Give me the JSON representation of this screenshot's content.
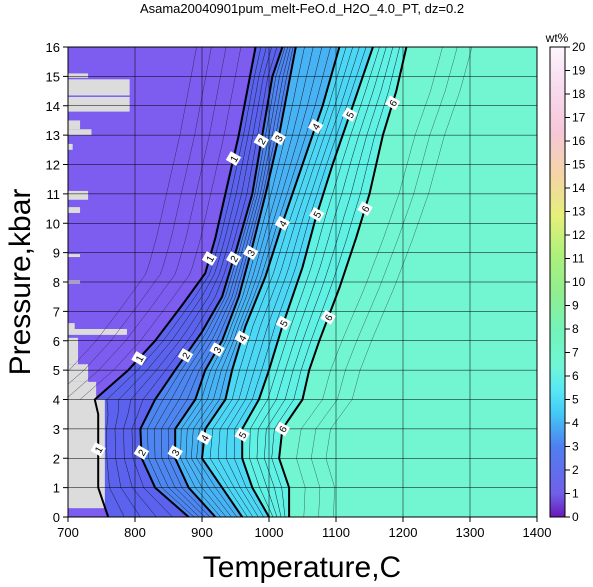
{
  "chart_data": {
    "type": "contour",
    "title": "Asama20040901pum_melt-FeO.d_H2O_4.0_PT, dz=0.2",
    "xlabel": "Temperature,C",
    "ylabel": "Pressure,kbar",
    "xlim": [
      700,
      1400
    ],
    "ylim": [
      0,
      16
    ],
    "xticks": [
      700,
      800,
      900,
      1000,
      1100,
      1200,
      1300,
      1400
    ],
    "yticks": [
      0,
      1,
      2,
      3,
      4,
      5,
      6,
      7,
      8,
      9,
      10,
      11,
      12,
      13,
      14,
      15,
      16
    ],
    "grid": true,
    "colorbar": {
      "title": "wt%",
      "min": 0,
      "max": 20,
      "ticks": [
        0,
        1,
        2,
        3,
        4,
        5,
        6,
        7,
        8,
        9,
        10,
        11,
        12,
        13,
        14,
        15,
        16,
        17,
        18,
        19,
        20
      ]
    },
    "contour_levels_labeled": [
      1,
      2,
      3,
      4,
      5,
      6
    ],
    "contours": [
      {
        "level": 1,
        "points": [
          [
            760,
            0
          ],
          [
            745,
            1
          ],
          [
            745,
            2.5
          ],
          [
            745,
            3.5
          ],
          [
            740,
            4
          ],
          [
            790,
            5
          ],
          [
            830,
            6
          ],
          [
            870,
            7.2
          ],
          [
            905,
            8.3
          ],
          [
            920,
            9.5
          ],
          [
            935,
            11
          ],
          [
            955,
            13
          ],
          [
            980,
            16
          ]
        ]
      },
      {
        "level": 2,
        "points": [
          [
            880,
            0
          ],
          [
            830,
            1
          ],
          [
            810,
            2
          ],
          [
            808,
            3
          ],
          [
            830,
            4
          ],
          [
            860,
            5
          ],
          [
            900,
            6.3
          ],
          [
            930,
            7.5
          ],
          [
            950,
            9
          ],
          [
            975,
            11
          ],
          [
            990,
            13
          ],
          [
            1005,
            15
          ],
          [
            1020,
            16
          ]
        ]
      },
      {
        "level": 3,
        "points": [
          [
            920,
            0
          ],
          [
            880,
            1
          ],
          [
            860,
            2
          ],
          [
            860,
            3
          ],
          [
            890,
            4
          ],
          [
            905,
            5
          ],
          [
            930,
            6
          ],
          [
            955,
            7.5
          ],
          [
            975,
            9.2
          ],
          [
            995,
            11
          ],
          [
            1015,
            13
          ],
          [
            1040,
            16
          ]
        ]
      },
      {
        "level": 4,
        "points": [
          [
            960,
            0
          ],
          [
            930,
            1
          ],
          [
            900,
            2
          ],
          [
            905,
            3
          ],
          [
            935,
            4
          ],
          [
            945,
            5
          ],
          [
            965,
            6.5
          ],
          [
            995,
            8.2
          ],
          [
            1020,
            10
          ],
          [
            1050,
            12
          ],
          [
            1080,
            14
          ],
          [
            1105,
            16
          ]
        ]
      },
      {
        "level": 5,
        "points": [
          [
            1000,
            0
          ],
          [
            975,
            1
          ],
          [
            960,
            2
          ],
          [
            960,
            3
          ],
          [
            985,
            4
          ],
          [
            1000,
            5
          ],
          [
            1020,
            6.5
          ],
          [
            1050,
            8.5
          ],
          [
            1070,
            10.2
          ],
          [
            1095,
            12
          ],
          [
            1125,
            14
          ],
          [
            1155,
            16
          ]
        ]
      },
      {
        "level": 6,
        "points": [
          [
            1030,
            0
          ],
          [
            1030,
            1
          ],
          [
            1015,
            2
          ],
          [
            1020,
            3
          ],
          [
            1050,
            4
          ],
          [
            1060,
            5
          ],
          [
            1075,
            6
          ],
          [
            1105,
            7.8
          ],
          [
            1130,
            9.5
          ],
          [
            1150,
            11
          ],
          [
            1170,
            13
          ],
          [
            1190,
            14.5
          ],
          [
            1205,
            16
          ]
        ]
      }
    ]
  }
}
